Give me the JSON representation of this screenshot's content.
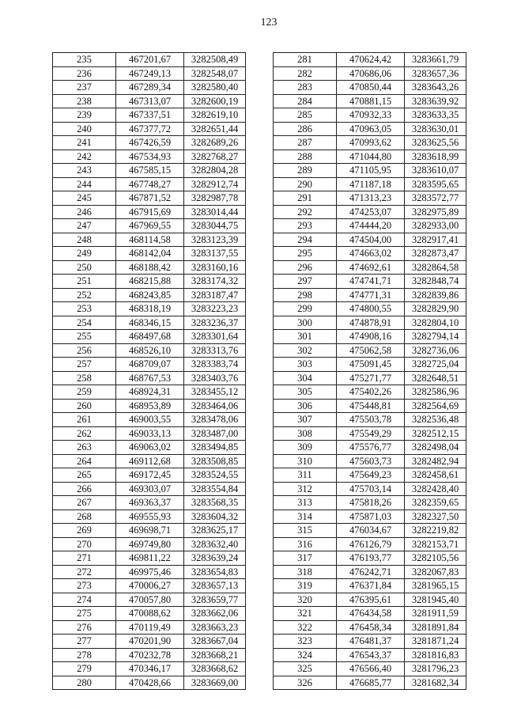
{
  "page_number": "123",
  "left_table": [
    [
      "235",
      "467201,67",
      "3282508,49"
    ],
    [
      "236",
      "467249,13",
      "3282548,07"
    ],
    [
      "237",
      "467289,34",
      "3282580,40"
    ],
    [
      "238",
      "467313,07",
      "3282600,19"
    ],
    [
      "239",
      "467337,51",
      "3282619,10"
    ],
    [
      "240",
      "467377,72",
      "3282651,44"
    ],
    [
      "241",
      "467426,59",
      "3282689,26"
    ],
    [
      "242",
      "467534,93",
      "3282768,27"
    ],
    [
      "243",
      "467585,15",
      "3282804,28"
    ],
    [
      "244",
      "467748,27",
      "3282912,74"
    ],
    [
      "245",
      "467871,52",
      "3282987,78"
    ],
    [
      "246",
      "467915,69",
      "3283014,44"
    ],
    [
      "247",
      "467969,55",
      "3283044,75"
    ],
    [
      "248",
      "468114,58",
      "3283123,39"
    ],
    [
      "249",
      "468142,04",
      "3283137,55"
    ],
    [
      "250",
      "468188,42",
      "3283160,16"
    ],
    [
      "251",
      "468215,88",
      "3283174,32"
    ],
    [
      "252",
      "468243,85",
      "3283187,47"
    ],
    [
      "253",
      "468318,19",
      "3283223,23"
    ],
    [
      "254",
      "468346,15",
      "3283236,37"
    ],
    [
      "255",
      "468497,68",
      "3283301,64"
    ],
    [
      "256",
      "468526,10",
      "3283313,76"
    ],
    [
      "257",
      "468709,07",
      "3283383,74"
    ],
    [
      "258",
      "468767,53",
      "3283403,76"
    ],
    [
      "259",
      "468924,31",
      "3283455,12"
    ],
    [
      "260",
      "468953,89",
      "3283464,06"
    ],
    [
      "261",
      "469003,55",
      "3283478,06"
    ],
    [
      "262",
      "469033,13",
      "3283487,00"
    ],
    [
      "263",
      "469063,02",
      "3283494,85"
    ],
    [
      "264",
      "469112,68",
      "3283508,85"
    ],
    [
      "265",
      "469172,45",
      "3283524,55"
    ],
    [
      "266",
      "469303,07",
      "3283554,84"
    ],
    [
      "267",
      "469363,37",
      "3283568,35"
    ],
    [
      "268",
      "469555,93",
      "3283604,32"
    ],
    [
      "269",
      "469698,71",
      "3283625,17"
    ],
    [
      "270",
      "469749,80",
      "3283632,40"
    ],
    [
      "271",
      "469811,22",
      "3283639,24"
    ],
    [
      "272",
      "469975,46",
      "3283654,83"
    ],
    [
      "273",
      "470006,27",
      "3283657,13"
    ],
    [
      "274",
      "470057,80",
      "3283659,77"
    ],
    [
      "275",
      "470088,62",
      "3283662,06"
    ],
    [
      "276",
      "470119,49",
      "3283663,23"
    ],
    [
      "277",
      "470201,90",
      "3283667,04"
    ],
    [
      "278",
      "470232,78",
      "3283668,21"
    ],
    [
      "279",
      "470346,17",
      "3283668,62"
    ],
    [
      "280",
      "470428,66",
      "3283669,00"
    ]
  ],
  "right_table": [
    [
      "281",
      "470624,42",
      "3283661,79"
    ],
    [
      "282",
      "470686,06",
      "3283657,36"
    ],
    [
      "283",
      "470850,44",
      "3283643,26"
    ],
    [
      "284",
      "470881,15",
      "3283639,92"
    ],
    [
      "285",
      "470932,33",
      "3283633,35"
    ],
    [
      "286",
      "470963,05",
      "3283630,01"
    ],
    [
      "287",
      "470993,62",
      "3283625,56"
    ],
    [
      "288",
      "471044,80",
      "3283618,99"
    ],
    [
      "289",
      "471105,95",
      "3283610,07"
    ],
    [
      "290",
      "471187,18",
      "3283595,65"
    ],
    [
      "291",
      "471313,23",
      "3283572,77"
    ],
    [
      "292",
      "474253,07",
      "3282975,89"
    ],
    [
      "293",
      "474444,20",
      "3282933,00"
    ],
    [
      "294",
      "474504,00",
      "3282917,41"
    ],
    [
      "295",
      "474663,02",
      "3282873,47"
    ],
    [
      "296",
      "474692,61",
      "3282864,58"
    ],
    [
      "297",
      "474741,71",
      "3282848,74"
    ],
    [
      "298",
      "474771,31",
      "3282839,86"
    ],
    [
      "299",
      "474800,55",
      "3282829,90"
    ],
    [
      "300",
      "474878,91",
      "3282804,10"
    ],
    [
      "301",
      "474908,16",
      "3282794,14"
    ],
    [
      "302",
      "475062,58",
      "3282736,06"
    ],
    [
      "303",
      "475091,45",
      "3282725,04"
    ],
    [
      "304",
      "475271,77",
      "3282648,51"
    ],
    [
      "305",
      "475402,26",
      "3282586,96"
    ],
    [
      "306",
      "475448,81",
      "3282564,69"
    ],
    [
      "307",
      "475503,78",
      "3282536,48"
    ],
    [
      "308",
      "475549,29",
      "3282512,15"
    ],
    [
      "309",
      "475576,77",
      "3282498,04"
    ],
    [
      "310",
      "475603,73",
      "3282482,94"
    ],
    [
      "311",
      "475649,23",
      "3282458,61"
    ],
    [
      "312",
      "475703,14",
      "3282428,40"
    ],
    [
      "313",
      "475818,26",
      "3282359,65"
    ],
    [
      "314",
      "475871,03",
      "3282327,50"
    ],
    [
      "315",
      "476034,67",
      "3282219,82"
    ],
    [
      "316",
      "476126,79",
      "3282153,71"
    ],
    [
      "317",
      "476193,77",
      "3282105,56"
    ],
    [
      "318",
      "476242,71",
      "3282067,83"
    ],
    [
      "319",
      "476371,84",
      "3281965,15"
    ],
    [
      "320",
      "476395,61",
      "3281945,40"
    ],
    [
      "321",
      "476434,58",
      "3281911,59"
    ],
    [
      "322",
      "476458,34",
      "3281891,84"
    ],
    [
      "323",
      "476481,37",
      "3281871,24"
    ],
    [
      "324",
      "476543,37",
      "3281816,83"
    ],
    [
      "325",
      "476566,40",
      "3281796,23"
    ],
    [
      "326",
      "476685,77",
      "3281682,34"
    ]
  ]
}
